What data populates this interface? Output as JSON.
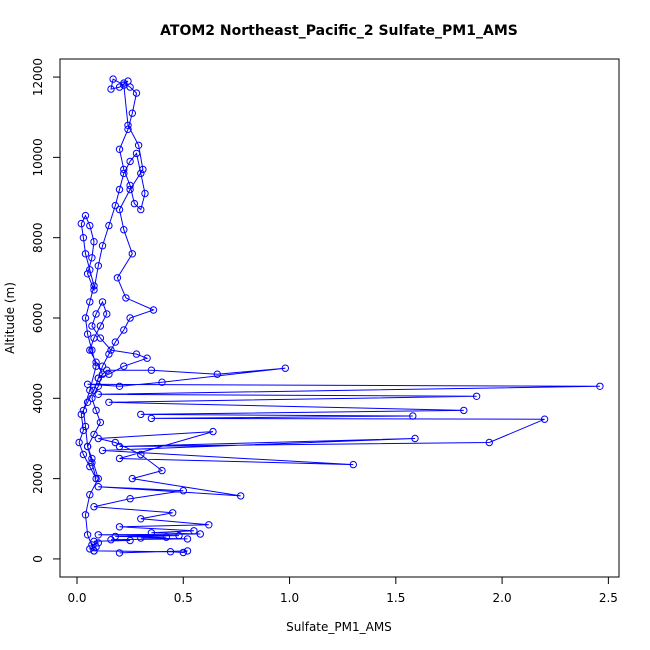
{
  "chart_data": {
    "type": "line",
    "title": "ATOM2 Northeast_Pacific_2 Sulfate_PM1_AMS",
    "xlabel": "Sulfate_PM1_AMS",
    "ylabel": "Altitude (m)",
    "xlim": [
      -0.08,
      2.55
    ],
    "ylim": [
      -450,
      12450
    ],
    "x_ticks": [
      0.0,
      0.5,
      1.0,
      1.5,
      2.0,
      2.5
    ],
    "x_tick_labels": [
      "0.0",
      "0.5",
      "1.0",
      "1.5",
      "2.0",
      "2.5"
    ],
    "y_ticks": [
      0,
      2000,
      4000,
      6000,
      8000,
      10000,
      12000
    ],
    "y_tick_labels": [
      "0",
      "2000",
      "4000",
      "6000",
      "8000",
      "10000",
      "12000"
    ],
    "grid": false,
    "series_color": "#0000ff",
    "series": [
      {
        "x": [
          0.08,
          0.05,
          0.04,
          0.06,
          0.1,
          0.07,
          0.05,
          0.04,
          0.03,
          0.06,
          0.09,
          0.07,
          0.05,
          0.04,
          0.06,
          0.08,
          0.06,
          0.04,
          0.03,
          0.02,
          0.04,
          0.06,
          0.08,
          0.07,
          0.05,
          0.08,
          0.1,
          0.12,
          0.15,
          0.18,
          0.2,
          0.22,
          0.25,
          0.28,
          0.3,
          0.32,
          0.3,
          0.27,
          0.25,
          0.22,
          0.2,
          0.24,
          0.26,
          0.28,
          0.25,
          0.22,
          0.24,
          0.2,
          0.16,
          0.17,
          0.22,
          0.24,
          0.29,
          0.31,
          0.25,
          0.2,
          0.22,
          0.26,
          0.19,
          0.23,
          0.36,
          0.25,
          0.22,
          0.18,
          0.15,
          0.12,
          0.1,
          0.08,
          0.05,
          0.02,
          0.03,
          0.01,
          0.03,
          0.06,
          0.09,
          0.07,
          0.05,
          0.08,
          0.11,
          0.09,
          0.07,
          0.1,
          0.12,
          0.09,
          0.06,
          0.08,
          0.11,
          0.14,
          0.12,
          0.09,
          0.07,
          0.11,
          0.16,
          0.28,
          0.33,
          0.22,
          0.15,
          0.1,
          0.14,
          0.35,
          0.66,
          0.98,
          0.4,
          0.2,
          0.05,
          2.46,
          0.1,
          1.88,
          0.15,
          1.82,
          0.3,
          1.58,
          0.35,
          2.2,
          1.94,
          0.2,
          1.59,
          0.12,
          1.3,
          0.2,
          0.64,
          0.1,
          0.18,
          0.3,
          0.4,
          0.26,
          0.77,
          0.1,
          0.5,
          0.25,
          0.08,
          0.45,
          0.3,
          0.62,
          0.2,
          0.55,
          0.35,
          0.58,
          0.1,
          0.48,
          0.18,
          0.42,
          0.3,
          0.52,
          0.16,
          0.25,
          0.08,
          0.1,
          0.07,
          0.09,
          0.06,
          0.08,
          0.44,
          0.5,
          0.52,
          0.2
        ],
        "y": [
          200,
          600,
          1100,
          1600,
          2000,
          2500,
          2800,
          3300,
          3700,
          4200,
          4800,
          5200,
          5600,
          6000,
          6400,
          6800,
          7200,
          7600,
          8000,
          8350,
          8550,
          8300,
          7900,
          7500,
          7100,
          6700,
          7300,
          7800,
          8300,
          8800,
          9200,
          9600,
          9900,
          10100,
          9600,
          9100,
          8700,
          8850,
          9300,
          9700,
          10200,
          10700,
          11100,
          11600,
          11750,
          11850,
          11900,
          11750,
          11700,
          11950,
          11800,
          10800,
          10300,
          9700,
          9200,
          8700,
          8200,
          7600,
          7000,
          6500,
          6200,
          6000,
          5700,
          5400,
          5100,
          4800,
          4500,
          4200,
          3900,
          3600,
          3200,
          2900,
          2600,
          2300,
          2000,
          2400,
          2800,
          3100,
          3400,
          3700,
          4000,
          4300,
          4600,
          4900,
          5200,
          5500,
          5800,
          6100,
          6400,
          6100,
          5800,
          5500,
          5200,
          5100,
          5000,
          4800,
          4600,
          4500,
          4700,
          4700,
          4600,
          4750,
          4400,
          4300,
          4350,
          4300,
          4100,
          4050,
          3900,
          3700,
          3600,
          3560,
          3500,
          3480,
          2900,
          2800,
          3000,
          2700,
          2350,
          2500,
          3170,
          3000,
          2900,
          2600,
          2200,
          2000,
          1570,
          1800,
          1700,
          1500,
          1300,
          1150,
          1000,
          850,
          800,
          700,
          650,
          620,
          600,
          580,
          560,
          540,
          520,
          500,
          480,
          460,
          440,
          400,
          350,
          300,
          250,
          200,
          180,
          160,
          200,
          150
        ]
      }
    ]
  }
}
